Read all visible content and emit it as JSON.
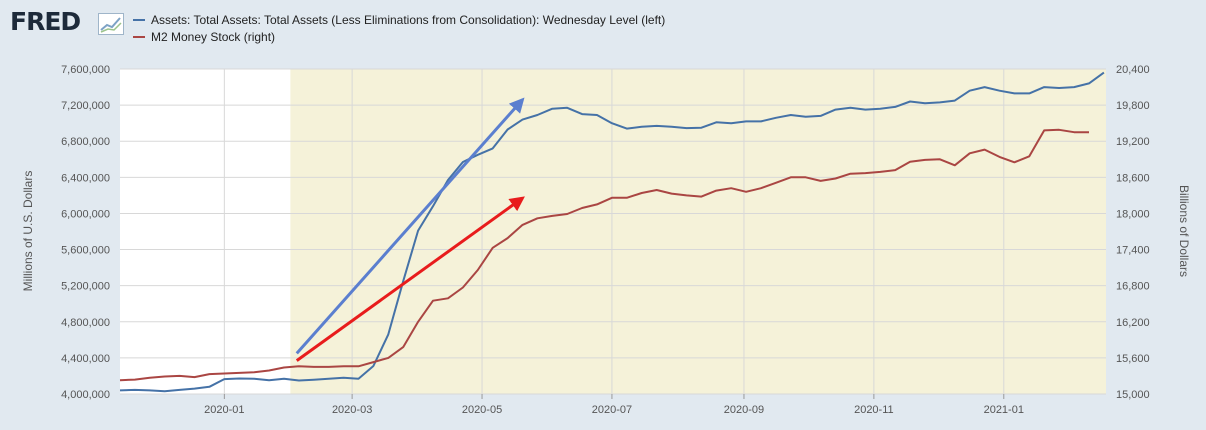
{
  "brand": {
    "logo_text": "FRED",
    "logo_mark": "line-chart-icon"
  },
  "legend": [
    {
      "label": "Assets: Total Assets: Total Assets (Less Eliminations from Consolidation): Wednesday Level (left)",
      "color": "#4572a7"
    },
    {
      "label": "M2 Money Stock (right)",
      "color": "#aa4643"
    }
  ],
  "chart_data": {
    "type": "line",
    "y_left": {
      "label": "Millions of U.S. Dollars",
      "range": [
        4000000,
        7600000
      ],
      "ticks": [
        4000000,
        4400000,
        4800000,
        5200000,
        5600000,
        6000000,
        6400000,
        6800000,
        7200000,
        7600000
      ],
      "tick_labels": [
        "4,000,000",
        "4,400,000",
        "4,800,000",
        "5,200,000",
        "5,600,000",
        "6,000,000",
        "6,400,000",
        "6,800,000",
        "7,200,000",
        "7,600,000"
      ]
    },
    "y_right": {
      "label": "Billions of Dollars",
      "range": [
        15000,
        20400
      ],
      "ticks": [
        15000,
        15600,
        16200,
        16800,
        17400,
        18000,
        18600,
        19200,
        19800,
        20400
      ],
      "tick_labels": [
        "15,000",
        "15,600",
        "16,200",
        "16,800",
        "17,400",
        "18,000",
        "18,600",
        "19,200",
        "19,800",
        "20,400"
      ]
    },
    "x_axis": {
      "range": [
        "2019-11-13",
        "2021-02-18"
      ],
      "ticks": [
        "2020-01-01",
        "2020-03-01",
        "2020-05-01",
        "2020-07-01",
        "2020-09-01",
        "2020-11-01",
        "2021-01-01"
      ],
      "tick_labels": [
        "2020-01",
        "2020-03",
        "2020-05",
        "2020-07",
        "2020-09",
        "2020-11",
        "2021-01"
      ]
    },
    "shaded_region": {
      "start": "2020-02-01",
      "end": "2021-02-18",
      "color": "#f5f2d9"
    },
    "series": [
      {
        "name": "Assets: Total Assets: Total Assets (Less Eliminations from Consolidation): Wednesday Level (left)",
        "axis": "left",
        "color": "#4572a7",
        "points": [
          [
            "2019-11-13",
            4040000
          ],
          [
            "2019-11-20",
            4045000
          ],
          [
            "2019-11-27",
            4040000
          ],
          [
            "2019-12-04",
            4030000
          ],
          [
            "2019-12-11",
            4045000
          ],
          [
            "2019-12-18",
            4060000
          ],
          [
            "2019-12-25",
            4080000
          ],
          [
            "2020-01-01",
            4165000
          ],
          [
            "2020-01-08",
            4172000
          ],
          [
            "2020-01-15",
            4168000
          ],
          [
            "2020-01-22",
            4152000
          ],
          [
            "2020-01-29",
            4168000
          ],
          [
            "2020-02-05",
            4150000
          ],
          [
            "2020-02-12",
            4158000
          ],
          [
            "2020-02-19",
            4168000
          ],
          [
            "2020-02-26",
            4180000
          ],
          [
            "2020-03-04",
            4170000
          ],
          [
            "2020-03-11",
            4310000
          ],
          [
            "2020-03-18",
            4660000
          ],
          [
            "2020-03-25",
            5250000
          ],
          [
            "2020-04-01",
            5810000
          ],
          [
            "2020-04-08",
            6080000
          ],
          [
            "2020-04-15",
            6370000
          ],
          [
            "2020-04-22",
            6570000
          ],
          [
            "2020-04-29",
            6650000
          ],
          [
            "2020-05-06",
            6720000
          ],
          [
            "2020-05-13",
            6930000
          ],
          [
            "2020-05-20",
            7040000
          ],
          [
            "2020-05-27",
            7090000
          ],
          [
            "2020-06-03",
            7160000
          ],
          [
            "2020-06-10",
            7170000
          ],
          [
            "2020-06-17",
            7100000
          ],
          [
            "2020-06-24",
            7090000
          ],
          [
            "2020-07-01",
            7000000
          ],
          [
            "2020-07-08",
            6940000
          ],
          [
            "2020-07-15",
            6960000
          ],
          [
            "2020-07-22",
            6970000
          ],
          [
            "2020-07-29",
            6960000
          ],
          [
            "2020-08-05",
            6945000
          ],
          [
            "2020-08-12",
            6950000
          ],
          [
            "2020-08-19",
            7010000
          ],
          [
            "2020-08-26",
            7000000
          ],
          [
            "2020-09-02",
            7020000
          ],
          [
            "2020-09-09",
            7020000
          ],
          [
            "2020-09-16",
            7060000
          ],
          [
            "2020-09-23",
            7090000
          ],
          [
            "2020-09-30",
            7070000
          ],
          [
            "2020-10-07",
            7080000
          ],
          [
            "2020-10-14",
            7150000
          ],
          [
            "2020-10-21",
            7170000
          ],
          [
            "2020-10-28",
            7150000
          ],
          [
            "2020-11-04",
            7160000
          ],
          [
            "2020-11-11",
            7180000
          ],
          [
            "2020-11-18",
            7240000
          ],
          [
            "2020-11-25",
            7220000
          ],
          [
            "2020-12-02",
            7230000
          ],
          [
            "2020-12-09",
            7250000
          ],
          [
            "2020-12-16",
            7360000
          ],
          [
            "2020-12-23",
            7400000
          ],
          [
            "2020-12-30",
            7360000
          ],
          [
            "2021-01-06",
            7330000
          ],
          [
            "2021-01-13",
            7330000
          ],
          [
            "2021-01-20",
            7400000
          ],
          [
            "2021-01-27",
            7390000
          ],
          [
            "2021-02-03",
            7400000
          ],
          [
            "2021-02-10",
            7440000
          ],
          [
            "2021-02-17",
            7560000
          ]
        ]
      },
      {
        "name": "M2 Money Stock (right)",
        "axis": "right",
        "color": "#aa4643",
        "points": [
          [
            "2019-11-13",
            15230
          ],
          [
            "2019-11-20",
            15240
          ],
          [
            "2019-11-27",
            15270
          ],
          [
            "2019-12-04",
            15290
          ],
          [
            "2019-12-11",
            15300
          ],
          [
            "2019-12-18",
            15280
          ],
          [
            "2019-12-25",
            15330
          ],
          [
            "2020-01-01",
            15340
          ],
          [
            "2020-01-08",
            15350
          ],
          [
            "2020-01-15",
            15360
          ],
          [
            "2020-01-22",
            15390
          ],
          [
            "2020-01-29",
            15440
          ],
          [
            "2020-02-05",
            15460
          ],
          [
            "2020-02-12",
            15450
          ],
          [
            "2020-02-19",
            15450
          ],
          [
            "2020-02-26",
            15460
          ],
          [
            "2020-03-04",
            15460
          ],
          [
            "2020-03-11",
            15530
          ],
          [
            "2020-03-18",
            15600
          ],
          [
            "2020-03-25",
            15780
          ],
          [
            "2020-04-01",
            16200
          ],
          [
            "2020-04-08",
            16550
          ],
          [
            "2020-04-15",
            16590
          ],
          [
            "2020-04-22",
            16770
          ],
          [
            "2020-04-29",
            17060
          ],
          [
            "2020-05-06",
            17430
          ],
          [
            "2020-05-13",
            17590
          ],
          [
            "2020-05-20",
            17810
          ],
          [
            "2020-05-27",
            17920
          ],
          [
            "2020-06-03",
            17960
          ],
          [
            "2020-06-10",
            17990
          ],
          [
            "2020-06-17",
            18090
          ],
          [
            "2020-06-24",
            18150
          ],
          [
            "2020-07-01",
            18260
          ],
          [
            "2020-07-08",
            18260
          ],
          [
            "2020-07-15",
            18340
          ],
          [
            "2020-07-22",
            18390
          ],
          [
            "2020-07-29",
            18330
          ],
          [
            "2020-08-05",
            18300
          ],
          [
            "2020-08-12",
            18280
          ],
          [
            "2020-08-19",
            18380
          ],
          [
            "2020-08-26",
            18420
          ],
          [
            "2020-09-02",
            18360
          ],
          [
            "2020-09-09",
            18420
          ],
          [
            "2020-09-16",
            18510
          ],
          [
            "2020-09-23",
            18600
          ],
          [
            "2020-09-30",
            18600
          ],
          [
            "2020-10-07",
            18540
          ],
          [
            "2020-10-14",
            18580
          ],
          [
            "2020-10-21",
            18660
          ],
          [
            "2020-10-28",
            18670
          ],
          [
            "2020-11-04",
            18690
          ],
          [
            "2020-11-11",
            18720
          ],
          [
            "2020-11-18",
            18860
          ],
          [
            "2020-11-25",
            18890
          ],
          [
            "2020-12-02",
            18900
          ],
          [
            "2020-12-09",
            18800
          ],
          [
            "2020-12-16",
            19000
          ],
          [
            "2020-12-23",
            19060
          ],
          [
            "2020-12-30",
            18940
          ],
          [
            "2021-01-06",
            18850
          ],
          [
            "2021-01-13",
            18950
          ],
          [
            "2021-01-20",
            19380
          ],
          [
            "2021-01-27",
            19390
          ],
          [
            "2021-02-03",
            19350
          ],
          [
            "2021-02-10",
            19350
          ]
        ]
      }
    ],
    "annotations": [
      {
        "type": "arrow",
        "color": "#5b7fcf",
        "from": [
          "2020-02-04",
          4450000
        ],
        "to": [
          "2020-05-20",
          7260000
        ]
      },
      {
        "type": "arrow",
        "color": "#e81c1c",
        "from": [
          "2020-02-04",
          4370000
        ],
        "to": [
          "2020-05-20",
          6170000
        ]
      }
    ],
    "grid": true,
    "legend_position": "top-left"
  }
}
